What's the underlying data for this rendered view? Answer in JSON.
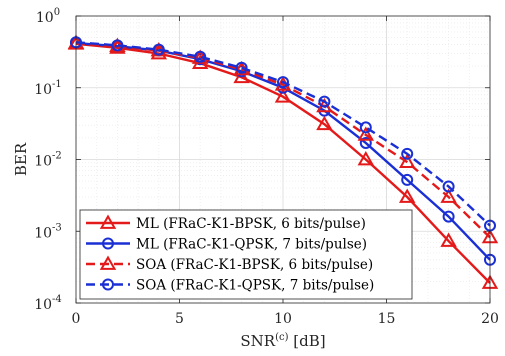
{
  "chart_data": {
    "type": "line",
    "xlabel": "SNR",
    "xlabel_sup": "(c)",
    "xlabel_unit": " [dB]",
    "ylabel": "BER",
    "xlim": [
      0,
      20
    ],
    "ylim": [
      0.0001,
      1
    ],
    "y_scale": "log",
    "grid": true,
    "legend_position": "bottom-left",
    "x_ticks": [
      0,
      5,
      10,
      15,
      20
    ],
    "x_tick_labels": [
      "0",
      "5",
      "10",
      "15",
      "20"
    ],
    "y_ticks": [
      1,
      0.1,
      0.01,
      0.001,
      0.0001
    ],
    "y_tick_labels": [
      {
        "base": "10",
        "exp": "0"
      },
      {
        "base": "10",
        "exp": "-1"
      },
      {
        "base": "10",
        "exp": "-2"
      },
      {
        "base": "10",
        "exp": "-3"
      },
      {
        "base": "10",
        "exp": "-4"
      }
    ],
    "x": [
      0,
      2,
      4,
      6,
      8,
      10,
      12,
      14,
      16,
      18,
      20
    ],
    "series": [
      {
        "name": "ML (FRaC-K1-BPSK, 6 bits/pulse)",
        "color": "#e41a1a",
        "dash": "solid",
        "marker": "triangle",
        "values": [
          0.41,
          0.36,
          0.3,
          0.22,
          0.14,
          0.075,
          0.031,
          0.01,
          0.003,
          0.00073,
          0.00019
        ]
      },
      {
        "name": "ML (FRaC-K1-QPSK, 7 bits/pulse)",
        "color": "#1a2fd4",
        "dash": "solid",
        "marker": "circle",
        "values": [
          0.42,
          0.38,
          0.33,
          0.25,
          0.17,
          0.1,
          0.048,
          0.017,
          0.0052,
          0.0016,
          0.0004
        ]
      },
      {
        "name": "SOA (FRaC-K1-BPSK, 6 bits/pulse)",
        "color": "#e41a1a",
        "dash": "dashed",
        "marker": "triangle",
        "values": [
          0.42,
          0.38,
          0.33,
          0.26,
          0.18,
          0.11,
          0.055,
          0.022,
          0.0092,
          0.003,
          0.00082
        ]
      },
      {
        "name": "SOA (FRaC-K1-QPSK, 7 bits/pulse)",
        "color": "#1a2fd4",
        "dash": "dashed",
        "marker": "circle",
        "values": [
          0.43,
          0.39,
          0.34,
          0.27,
          0.19,
          0.12,
          0.064,
          0.028,
          0.012,
          0.0042,
          0.0012
        ]
      }
    ]
  }
}
